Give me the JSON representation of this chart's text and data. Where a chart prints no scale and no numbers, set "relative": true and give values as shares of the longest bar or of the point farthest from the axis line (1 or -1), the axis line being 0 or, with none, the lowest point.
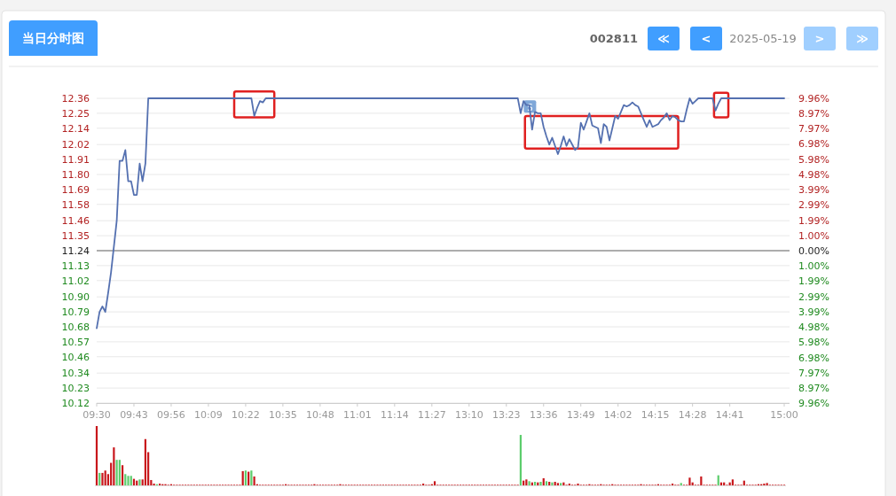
{
  "chart_data": [
    {
      "type": "line",
      "title": "当日分时图",
      "subtitle": "2025-05-19",
      "annotations": [
        "002811",
        "≪",
        "<",
        ">",
        "≫",
        {
          "text": "S",
          "y": 12.28
        }
      ],
      "categories": [
        "09:30",
        null,
        null,
        null,
        null,
        null,
        null,
        null,
        null,
        null,
        null,
        null,
        null,
        "09:43",
        null,
        null,
        null,
        null,
        null,
        null,
        null,
        null,
        null,
        null,
        null,
        null,
        "09:56",
        null,
        null,
        null,
        null,
        null,
        null,
        null,
        null,
        null,
        null,
        null,
        null,
        "10:09",
        null,
        null,
        null,
        null,
        null,
        null,
        null,
        null,
        null,
        null,
        null,
        null,
        "10:22",
        null,
        null,
        null,
        null,
        null,
        null,
        null,
        null,
        null,
        null,
        null,
        null,
        "10:35",
        null,
        null,
        null,
        null,
        null,
        null,
        null,
        null,
        null,
        null,
        null,
        null,
        "10:48",
        null,
        null,
        null,
        null,
        null,
        null,
        null,
        null,
        null,
        null,
        null,
        null,
        "11:01",
        null,
        null,
        null,
        null,
        null,
        null,
        null,
        null,
        null,
        null,
        null,
        null,
        "11:14",
        null,
        null,
        null,
        null,
        null,
        null,
        null,
        null,
        null,
        null,
        null,
        null,
        "11:27",
        null,
        null,
        null,
        null,
        null,
        null,
        null,
        null,
        null,
        null,
        null,
        null,
        "13:10",
        null,
        null,
        null,
        null,
        null,
        null,
        null,
        null,
        null,
        null,
        null,
        null,
        "13:23",
        null,
        null,
        null,
        null,
        null,
        null,
        null,
        null,
        null,
        null,
        null,
        null,
        "13:36",
        null,
        null,
        null,
        null,
        null,
        null,
        null,
        null,
        null,
        null,
        null,
        null,
        "13:49",
        null,
        null,
        null,
        null,
        null,
        null,
        null,
        null,
        null,
        null,
        null,
        null,
        "14:02",
        null,
        null,
        null,
        null,
        null,
        null,
        null,
        null,
        null,
        null,
        null,
        null,
        "14:15",
        null,
        null,
        null,
        null,
        null,
        null,
        null,
        null,
        null,
        null,
        null,
        null,
        "14:28",
        null,
        null,
        null,
        null,
        null,
        null,
        null,
        null,
        null,
        null,
        null,
        null,
        "14:41",
        null,
        null,
        null,
        null,
        null,
        null,
        null,
        null,
        null,
        null,
        null,
        null,
        null,
        null,
        null,
        null,
        null,
        null,
        "15:00"
      ],
      "series": [
        {
          "color": "#5470b0",
          "values": [
            10.67,
            10.79,
            10.83,
            10.79,
            10.93,
            11.08,
            11.27,
            11.46,
            11.9,
            11.9,
            11.98,
            11.75,
            11.75,
            11.65,
            11.65,
            11.88,
            11.75,
            11.88,
            12.36,
            12.36,
            12.36,
            12.36,
            12.36,
            12.36,
            12.36,
            12.36,
            12.36,
            12.36,
            12.36,
            12.36,
            12.36,
            12.36,
            12.36,
            12.36,
            12.36,
            12.36,
            12.36,
            12.36,
            12.36,
            12.36,
            12.36,
            12.36,
            12.36,
            12.36,
            12.36,
            12.36,
            12.36,
            12.36,
            12.36,
            12.36,
            12.36,
            12.36,
            12.36,
            12.36,
            12.36,
            12.23,
            12.29,
            12.34,
            12.33,
            12.36,
            12.36,
            12.36,
            12.36,
            12.36,
            12.36,
            12.36,
            12.36,
            12.36,
            12.36,
            12.36,
            12.36,
            12.36,
            12.36,
            12.36,
            12.36,
            12.36,
            12.36,
            12.36,
            12.36,
            12.36,
            12.36,
            12.36,
            12.36,
            12.36,
            12.36,
            12.36,
            12.36,
            12.36,
            12.36,
            12.36,
            12.36,
            12.36,
            12.36,
            12.36,
            12.36,
            12.36,
            12.36,
            12.36,
            12.36,
            12.36,
            12.36,
            12.36,
            12.36,
            12.36,
            12.36,
            12.36,
            12.36,
            12.36,
            12.36,
            12.36,
            12.36,
            12.36,
            12.36,
            12.36,
            12.36,
            12.36,
            12.36,
            12.36,
            12.36,
            12.36,
            12.36,
            12.36,
            12.36,
            12.36,
            12.36,
            12.36,
            12.36,
            12.36,
            12.36,
            12.36,
            12.36,
            12.36,
            12.36,
            12.36,
            12.36,
            12.36,
            12.36,
            12.36,
            12.36,
            12.36,
            12.36,
            12.36,
            12.36,
            12.36,
            12.36,
            12.36,
            12.36,
            12.36,
            12.25,
            12.34,
            12.31,
            12.31,
            12.13,
            12.26,
            12.25,
            12.25,
            12.15,
            12.08,
            12.02,
            12.07,
            12.01,
            11.95,
            12.01,
            12.08,
            12.01,
            12.06,
            12.02,
            11.98,
            12.0,
            12.18,
            12.13,
            12.19,
            12.25,
            12.16,
            12.15,
            12.14,
            12.03,
            12.17,
            12.15,
            12.05,
            12.14,
            12.23,
            12.21,
            12.26,
            12.31,
            12.3,
            12.31,
            12.33,
            12.31,
            12.3,
            12.25,
            12.2,
            12.15,
            12.2,
            12.15,
            12.16,
            12.17,
            12.2,
            12.22,
            12.25,
            12.2,
            12.23,
            12.22,
            12.2,
            12.19,
            12.19,
            12.28,
            12.36,
            12.32,
            12.34,
            12.36,
            12.36,
            12.36,
            12.36,
            12.36,
            12.36,
            12.27,
            12.32,
            12.36,
            12.36,
            12.36,
            12.36,
            12.36,
            12.36,
            12.36,
            12.36,
            12.36,
            12.36,
            12.36,
            12.36,
            12.36,
            12.36,
            12.36,
            12.36,
            12.36,
            12.36,
            12.36,
            12.36,
            12.36,
            12.36,
            12.36
          ]
        }
      ],
      "ylim": [
        10.12,
        12.36
      ],
      "yticks": [
        {
          "value": 12.36,
          "label": "12.36"
        },
        {
          "value": 12.25,
          "label": "12.25"
        },
        {
          "value": 12.14,
          "label": "12.14"
        },
        {
          "value": 12.02,
          "label": "12.02"
        },
        {
          "value": 11.91,
          "label": "11.91"
        },
        {
          "value": 11.8,
          "label": "11.80"
        },
        {
          "value": 11.69,
          "label": "11.69"
        },
        {
          "value": 11.58,
          "label": "11.58"
        },
        {
          "value": 11.46,
          "label": "11.46"
        },
        {
          "value": 11.35,
          "label": "11.35"
        },
        {
          "value": 11.24,
          "label": "11.24"
        },
        {
          "value": 11.13,
          "label": "11.13"
        },
        {
          "value": 11.02,
          "label": "11.02"
        },
        {
          "value": 10.9,
          "label": "10.90"
        },
        {
          "value": 10.79,
          "label": "10.79"
        },
        {
          "value": 10.68,
          "label": "10.68"
        },
        {
          "value": 10.57,
          "label": "10.57"
        },
        {
          "value": 10.46,
          "label": "10.46"
        },
        {
          "value": 10.34,
          "label": "10.34"
        },
        {
          "value": 10.23,
          "label": "10.23"
        },
        {
          "value": 10.12,
          "label": "10.12"
        }
      ],
      "y2lim": [
        -9.96,
        9.96
      ],
      "y2ticks": [
        {
          "value": 9.96,
          "label": "9.96%"
        },
        {
          "value": 8.97,
          "label": "8.97%"
        },
        {
          "value": 7.97,
          "label": "7.97%"
        },
        {
          "value": 6.98,
          "label": "6.98%"
        },
        {
          "value": 5.98,
          "label": "5.98%"
        },
        {
          "value": 4.98,
          "label": "4.98%"
        },
        {
          "value": 3.99,
          "label": "3.99%"
        },
        {
          "value": 2.99,
          "label": "2.99%"
        },
        {
          "value": 1.99,
          "label": "1.99%"
        },
        {
          "value": 1.0,
          "label": "1.00%"
        },
        {
          "value": 0,
          "label": "0.00%"
        },
        {
          "value": -1.0,
          "label": "1.00%"
        },
        {
          "value": -1.99,
          "label": "1.99%"
        },
        {
          "value": -2.99,
          "label": "2.99%"
        },
        {
          "value": -3.99,
          "label": "3.99%"
        },
        {
          "value": -4.98,
          "label": "4.98%"
        },
        {
          "value": -5.98,
          "label": "5.98%"
        },
        {
          "value": -6.98,
          "label": "6.98%"
        },
        {
          "value": -7.97,
          "label": "7.97%"
        },
        {
          "value": -8.97,
          "label": "8.97%"
        },
        {
          "value": -9.96,
          "label": "9.96%"
        }
      ],
      "ref_lines": [
        {
          "axis": "y",
          "value": 11.24,
          "color": "#666666"
        }
      ],
      "grid": "y"
    },
    {
      "type": "bar",
      "relative": true,
      "categories": [
        null,
        null,
        null,
        null,
        null,
        null,
        null,
        null,
        null,
        null,
        null,
        null,
        null,
        null,
        null,
        null,
        null,
        null,
        null,
        null,
        null,
        null,
        null,
        null,
        null,
        null,
        null,
        null,
        null,
        null,
        null,
        null,
        null,
        null,
        null,
        null,
        null,
        null,
        null,
        null,
        null,
        null,
        null,
        null,
        null,
        null,
        null,
        null,
        null,
        null,
        null,
        null,
        null,
        null,
        null,
        null,
        null,
        null,
        null,
        null,
        null,
        null,
        null,
        null,
        null,
        null,
        null,
        null,
        null,
        null,
        null,
        null,
        null,
        null,
        null,
        null,
        null,
        null,
        null,
        null,
        null,
        null,
        null,
        null,
        null,
        null,
        null,
        null,
        null,
        null,
        null,
        null,
        null,
        null,
        null,
        null,
        null,
        null,
        null,
        null,
        null,
        null,
        null,
        null,
        null,
        null,
        null,
        null,
        null,
        null,
        null,
        null,
        null,
        null,
        null,
        null,
        null,
        null,
        null,
        null,
        null,
        null,
        null,
        null,
        null,
        null,
        null,
        null,
        null,
        null,
        null,
        null,
        null,
        null,
        null,
        null,
        null,
        null,
        null,
        null,
        null,
        null,
        null,
        null,
        null,
        null,
        null,
        null,
        null,
        null,
        null,
        null,
        null,
        null,
        null,
        null,
        null,
        null,
        null,
        null,
        null,
        null,
        null,
        null,
        null,
        null,
        null,
        null,
        null,
        null,
        null,
        null,
        null,
        null,
        null,
        null,
        null,
        null,
        null,
        null,
        null,
        null,
        null,
        null,
        null,
        null,
        null,
        null,
        null,
        null,
        null,
        null,
        null,
        null,
        null,
        null,
        null,
        null,
        null,
        null,
        null,
        null,
        null,
        null,
        null,
        null,
        null,
        null,
        null,
        null,
        null,
        null,
        null,
        null,
        null,
        null,
        null,
        null,
        null,
        null,
        null,
        null,
        null,
        null,
        null,
        null,
        null,
        null,
        null,
        null,
        null,
        null,
        null,
        null,
        null,
        null,
        null,
        null,
        null,
        null,
        null
      ],
      "values": [
        1.0,
        0.21,
        0.21,
        0.25,
        0.19,
        0.38,
        0.64,
        0.43,
        0.43,
        0.34,
        0.19,
        0.16,
        0.16,
        0.11,
        0.08,
        0.1,
        0.1,
        0.78,
        0.56,
        0.09,
        0.03,
        0.02,
        0.03,
        0.02,
        0.02,
        0.01,
        0.02,
        0.01,
        0.01,
        0.01,
        0.01,
        0.01,
        0.01,
        0.01,
        0.01,
        0.01,
        0.01,
        0.01,
        0.01,
        0.01,
        0.01,
        0.01,
        0.01,
        0.01,
        0.01,
        0.01,
        0.01,
        0.01,
        0.01,
        0.01,
        0.01,
        0.24,
        0.25,
        0.23,
        0.25,
        0.15,
        0.02,
        0.01,
        0.01,
        0.01,
        0.01,
        0.01,
        0.01,
        0.01,
        0.01,
        0.01,
        0.02,
        0.01,
        0.01,
        0.01,
        0.01,
        0.01,
        0.01,
        0.01,
        0.01,
        0.01,
        0.02,
        0.01,
        0.01,
        0.01,
        0.01,
        0.01,
        0.01,
        0.01,
        0.01,
        0.02,
        0.01,
        0.01,
        0.01,
        0.01,
        0.01,
        0.01,
        0.01,
        0.01,
        0.01,
        0.01,
        0.01,
        0.01,
        0.01,
        0.01,
        0.01,
        0.01,
        0.01,
        0.01,
        0.01,
        0.01,
        0.01,
        0.01,
        0.01,
        0.01,
        0.01,
        0.01,
        0.01,
        0.01,
        0.03,
        0.01,
        0.01,
        0.02,
        0.07,
        0.01,
        0.01,
        0.01,
        0.01,
        0.01,
        0.01,
        0.01,
        0.01,
        0.01,
        0.01,
        0.01,
        0.01,
        0.01,
        0.01,
        0.01,
        0.01,
        0.01,
        0.01,
        0.01,
        0.01,
        0.01,
        0.01,
        0.01,
        0.01,
        0.01,
        0.01,
        0.01,
        0.01,
        0.01,
        0.85,
        0.08,
        0.1,
        0.07,
        0.05,
        0.06,
        0.05,
        0.06,
        0.12,
        0.07,
        0.06,
        0.05,
        0.06,
        0.04,
        0.04,
        0.05,
        0.01,
        0.03,
        0.01,
        0.01,
        0.03,
        0.01,
        0.01,
        0.01,
        0.02,
        0.01,
        0.01,
        0.01,
        0.02,
        0.01,
        0.01,
        0.01,
        0.02,
        0.01,
        0.01,
        0.01,
        0.01,
        0.01,
        0.01,
        0.01,
        0.01,
        0.01,
        0.02,
        0.01,
        0.01,
        0.01,
        0.01,
        0.01,
        0.02,
        0.01,
        0.01,
        0.01,
        0.01,
        0.03,
        0.01,
        0.01,
        0.04,
        0.01,
        0.01,
        0.13,
        0.05,
        0.01,
        0.01,
        0.15,
        0.01,
        0.01,
        0.01,
        0.01,
        0.01,
        0.17,
        0.05,
        0.05,
        0.01,
        0.05,
        0.1,
        0.01,
        0.01,
        0.01,
        0.08,
        0.01,
        0.01,
        0.01,
        0.01,
        0.02,
        0.02,
        0.03,
        0.04,
        0.01,
        0.01,
        0.01,
        0.01,
        0.01,
        0.01
      ],
      "colors": [
        "#c8171c",
        "#5ccd6c",
        "#c8171c",
        "#c8171c",
        "#c8171c",
        "#c8171c",
        "#c8171c",
        "#5ccd6c",
        "#5ccd6c",
        "#c8171c",
        "#5ccd6c",
        "#5ccd6c",
        "#5ccd6c",
        "#c8171c",
        "#c8171c",
        "#5ccd6c",
        "#c8171c",
        "#c8171c",
        "#c8171c",
        "#c8171c",
        "#c8171c",
        "#5ccd6c",
        "#c8171c",
        "#c8171c",
        "#c8171c",
        "#c8171c",
        "#c8171c",
        "#c8171c",
        "#c8171c",
        "#c8171c",
        "#c8171c",
        "#c8171c",
        "#c8171c",
        "#c8171c",
        "#c8171c",
        "#c8171c",
        "#c8171c",
        "#c8171c",
        "#c8171c",
        "#c8171c",
        "#c8171c",
        "#c8171c",
        "#c8171c",
        "#c8171c",
        "#c8171c",
        "#c8171c",
        "#c8171c",
        "#c8171c",
        "#c8171c",
        "#c8171c",
        "#c8171c",
        "#c8171c",
        "#5ccd6c",
        "#c8171c",
        "#5ccd6c",
        "#c8171c",
        "#c8171c",
        "#c8171c",
        "#c8171c",
        "#c8171c",
        "#c8171c",
        "#c8171c",
        "#c8171c",
        "#c8171c",
        "#c8171c",
        "#c8171c",
        "#c8171c",
        "#c8171c",
        "#c8171c",
        "#c8171c",
        "#c8171c",
        "#c8171c",
        "#c8171c",
        "#c8171c",
        "#c8171c",
        "#c8171c",
        "#c8171c",
        "#c8171c",
        "#c8171c",
        "#c8171c",
        "#c8171c",
        "#c8171c",
        "#c8171c",
        "#c8171c",
        "#c8171c",
        "#c8171c",
        "#c8171c",
        "#c8171c",
        "#c8171c",
        "#c8171c",
        "#c8171c",
        "#c8171c",
        "#c8171c",
        "#c8171c",
        "#c8171c",
        "#c8171c",
        "#c8171c",
        "#c8171c",
        "#c8171c",
        "#c8171c",
        "#c8171c",
        "#c8171c",
        "#c8171c",
        "#c8171c",
        "#c8171c",
        "#c8171c",
        "#c8171c",
        "#c8171c",
        "#c8171c",
        "#c8171c",
        "#c8171c",
        "#c8171c",
        "#c8171c",
        "#c8171c",
        "#c8171c",
        "#c8171c",
        "#c8171c",
        "#c8171c",
        "#c8171c",
        "#c8171c",
        "#c8171c",
        "#c8171c",
        "#c8171c",
        "#c8171c",
        "#c8171c",
        "#c8171c",
        "#c8171c",
        "#c8171c",
        "#c8171c",
        "#c8171c",
        "#c8171c",
        "#c8171c",
        "#c8171c",
        "#c8171c",
        "#c8171c",
        "#c8171c",
        "#c8171c",
        "#c8171c",
        "#c8171c",
        "#c8171c",
        "#c8171c",
        "#c8171c",
        "#c8171c",
        "#c8171c",
        "#c8171c",
        "#c8171c",
        "#c8171c",
        "#c8171c",
        "#5ccd6c",
        "#c8171c",
        "#c8171c",
        "#5ccd6c",
        "#c8171c",
        "#5ccd6c",
        "#c8171c",
        "#5ccd6c",
        "#c8171c",
        "#5ccd6c",
        "#c8171c",
        "#5ccd6c",
        "#c8171c",
        "#c8171c",
        "#5ccd6c",
        "#c8171c",
        "#c8171c",
        "#c8171c",
        "#c8171c",
        "#c8171c",
        "#c8171c",
        "#c8171c",
        "#c8171c",
        "#c8171c",
        "#c8171c",
        "#c8171c",
        "#c8171c",
        "#c8171c",
        "#c8171c",
        "#c8171c",
        "#c8171c",
        "#c8171c",
        "#c8171c",
        "#c8171c",
        "#c8171c",
        "#c8171c",
        "#c8171c",
        "#c8171c",
        "#c8171c",
        "#c8171c",
        "#c8171c",
        "#c8171c",
        "#c8171c",
        "#c8171c",
        "#c8171c",
        "#c8171c",
        "#c8171c",
        "#c8171c",
        "#c8171c",
        "#c8171c",
        "#c8171c",
        "#c8171c",
        "#c8171c",
        "#c8171c",
        "#c8171c",
        "#c8171c",
        "#5ccd6c",
        "#c8171c",
        "#c8171c",
        "#c8171c",
        "#c8171c",
        "#c8171c",
        "#c8171c",
        "#c8171c",
        "#c8171c",
        "#c8171c",
        "#c8171c",
        "#c8171c",
        "#c8171c",
        "#5ccd6c",
        "#c8171c",
        "#c8171c",
        "#c8171c",
        "#c8171c",
        "#c8171c",
        "#c8171c",
        "#c8171c",
        "#c8171c",
        "#c8171c",
        "#c8171c",
        "#c8171c",
        "#c8171c",
        "#c8171c",
        "#c8171c",
        "#c8171c",
        "#c8171c",
        "#c8171c",
        "#c8171c",
        "#c8171c",
        "#c8171c",
        "#c8171c",
        "#c8171c",
        "#c8171c"
      ]
    }
  ]
}
